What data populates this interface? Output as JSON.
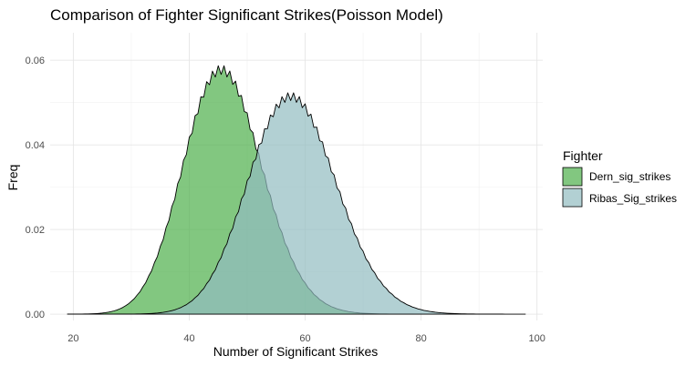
{
  "chart_data": {
    "type": "area",
    "title": "Comparison of Fighter Significant Strikes(Poisson Model)",
    "xlabel": "Number of Significant Strikes",
    "ylabel": "Freq",
    "xlim": [
      16,
      101
    ],
    "ylim": [
      -0.0015,
      0.0665
    ],
    "x_ticks": [
      20,
      40,
      60,
      80,
      100
    ],
    "y_ticks": [
      0.0,
      0.02,
      0.04,
      0.06
    ],
    "y_tick_labels": [
      "0.00",
      "0.02",
      "0.04",
      "0.06"
    ],
    "grid": true,
    "legend": {
      "title": "Fighter",
      "placement": "right"
    },
    "series": [
      {
        "name": "Dern_sig_strikes",
        "color": "#4daf4a",
        "opacity": 0.7,
        "model": "poisson",
        "lambda": 46,
        "x_range": [
          19,
          84
        ]
      },
      {
        "name": "Ribas_Sig_strikes",
        "color": "#91bcc0",
        "opacity": 0.7,
        "model": "poisson",
        "lambda": 58,
        "x_range": [
          19,
          98
        ]
      }
    ]
  }
}
